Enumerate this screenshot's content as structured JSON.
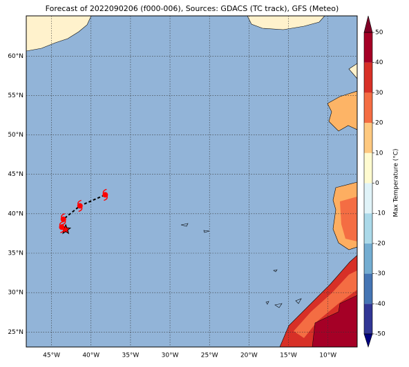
{
  "map": {
    "title": "Forecast of 2022090206 (f000-006), Sources: GDACS (TC track), GFS (Meteo)",
    "lat_ticks": [
      {
        "value": 25,
        "label": "25°N"
      },
      {
        "value": 30,
        "label": "30°N"
      },
      {
        "value": 35,
        "label": "35°N"
      },
      {
        "value": 40,
        "label": "40°N"
      },
      {
        "value": 45,
        "label": "45°N"
      },
      {
        "value": 50,
        "label": "50°N"
      },
      {
        "value": 55,
        "label": "55°N"
      },
      {
        "value": 60,
        "label": "60°N"
      }
    ],
    "lon_ticks": [
      {
        "value": -45,
        "label": "45°W"
      },
      {
        "value": -40,
        "label": "40°W"
      },
      {
        "value": -35,
        "label": "35°W"
      },
      {
        "value": -30,
        "label": "30°W"
      },
      {
        "value": -25,
        "label": "25°W"
      },
      {
        "value": -20,
        "label": "20°W"
      },
      {
        "value": -15,
        "label": "15°W"
      },
      {
        "value": -10,
        "label": "10°W"
      }
    ],
    "lonlim": [
      -48.2,
      -6.3
    ],
    "latlim": [
      23.1,
      65.1
    ],
    "track": {
      "lon": [
        -43.2,
        -43.7,
        -43.5,
        -41.4,
        -38.2
      ],
      "lat": [
        38.0,
        38.3,
        39.3,
        41.0,
        42.4
      ],
      "color": "#ff0000"
    },
    "colorbar": {
      "label": "Max Temperature (°C)",
      "ticks": [
        -50,
        -40,
        -30,
        -20,
        -10,
        0,
        10,
        20,
        30,
        40,
        50
      ],
      "colors": [
        "#313695",
        "#4575b4",
        "#74add1",
        "#abd9e9",
        "#e0f3f8",
        "#fffbd0",
        "#fec980",
        "#f46d43",
        "#d73027",
        "#a50026"
      ]
    }
  }
}
